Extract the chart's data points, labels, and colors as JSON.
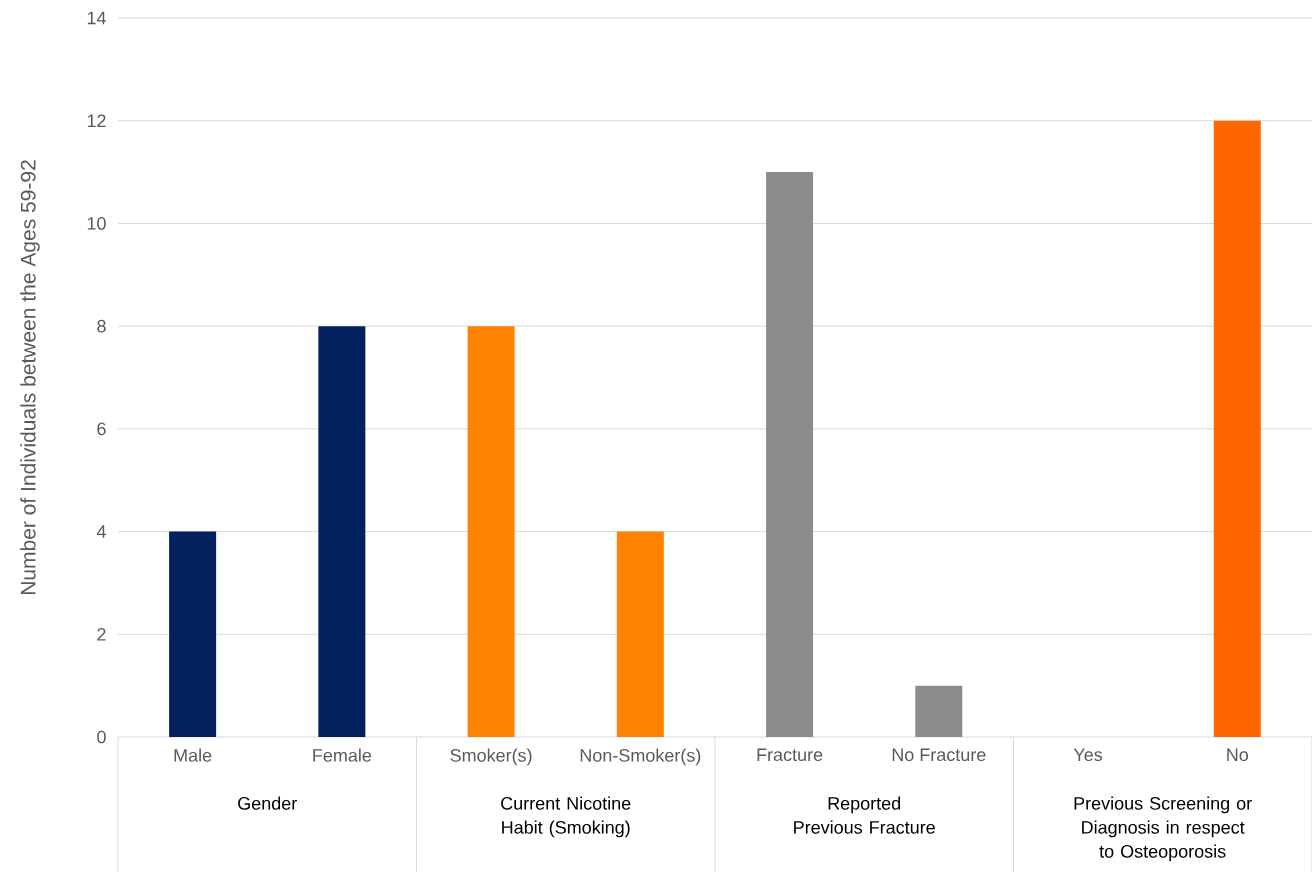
{
  "chart_data": {
    "type": "bar",
    "ylabel": "Number of Individuals between the Ages 59-92",
    "categories": [
      "Male",
      "Female",
      "Smoker(s)",
      "Non-Smoker(s)",
      "Fracture",
      "No Fracture",
      "Yes",
      "No"
    ],
    "values": [
      4,
      8,
      8,
      4,
      11,
      1,
      0,
      12
    ],
    "colors": [
      "#03215e",
      "#03215e",
      "#ff8200",
      "#ff8200",
      "#8c8c8c",
      "#8c8c8c",
      "#ff6600",
      "#ff6600"
    ],
    "ylim": [
      0,
      14
    ],
    "yticks": [
      0,
      2,
      4,
      6,
      8,
      10,
      12,
      14
    ],
    "grid": "y",
    "annotations": [
      "Gender",
      "Current Nicotine Habit (Smoking)",
      "Reported Previous Fracture",
      "Previous Screening or Diagnosis in respect to Osteoporosis"
    ]
  }
}
